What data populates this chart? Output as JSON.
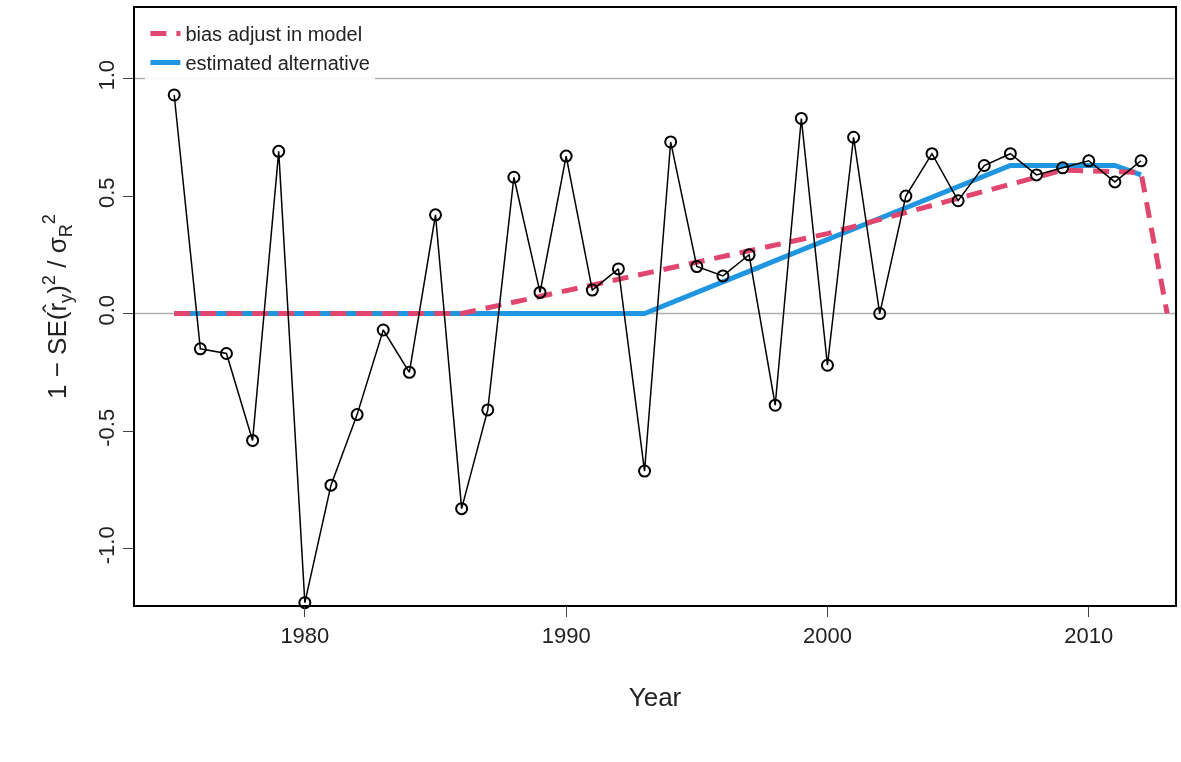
{
  "chart_data": {
    "type": "line",
    "xlabel": "Year",
    "ylabel": "1 − SE(r̂$_{y}$)$^{2}$ / σ$_{R}$$^{2}$",
    "x": [
      1975,
      1976,
      1977,
      1978,
      1979,
      1980,
      1981,
      1982,
      1983,
      1984,
      1985,
      1986,
      1987,
      1988,
      1989,
      1990,
      1991,
      1992,
      1993,
      1994,
      1995,
      1996,
      1997,
      1998,
      1999,
      2000,
      2001,
      2002,
      2003,
      2004,
      2005,
      2006,
      2007,
      2008,
      2009,
      2010,
      2011,
      2012
    ],
    "series": [
      {
        "color": "#000000",
        "marker": "circle",
        "values": [
          0.93,
          -0.15,
          -0.17,
          -0.54,
          0.69,
          -1.23,
          -0.73,
          -0.43,
          -0.07,
          -0.25,
          0.42,
          -0.83,
          -0.41,
          0.58,
          0.09,
          0.67,
          0.1,
          0.19,
          -0.67,
          0.73,
          0.2,
          0.16,
          0.25,
          -0.39,
          0.83,
          -0.22,
          0.75,
          0.0,
          0.5,
          0.68,
          0.48,
          0.63,
          0.68,
          0.59,
          0.62,
          0.65,
          0.56,
          0.65
        ]
      },
      {
        "name": "bias adjust in model",
        "color": "#e0466e",
        "line_style": "dashed",
        "marker": "none",
        "x": [
          1975,
          1986,
          2000,
          2007,
          2009,
          2012,
          2013
        ],
        "values": [
          0,
          0,
          0.34,
          0.55,
          0.61,
          0.6,
          0
        ]
      },
      {
        "name": "estimated alternative",
        "color": "#2196e0",
        "line_style": "solid",
        "marker": "none",
        "x": [
          1975,
          1993,
          2007,
          2011,
          2012
        ],
        "values": [
          0,
          0,
          0.63,
          0.63,
          0.59
        ]
      }
    ],
    "xlim": [
      1973.5,
      2013.3
    ],
    "ylim": [
      -1.24,
      1.3
    ],
    "xticks": [
      1980,
      1990,
      2000,
      2010
    ],
    "yticks": [
      {
        "value": -1.0,
        "label": "-1.0"
      },
      {
        "value": -0.5,
        "label": "-0.5"
      },
      {
        "value": 0.0,
        "label": "0.0"
      },
      {
        "value": 0.5,
        "label": "0.5"
      },
      {
        "value": 1.0,
        "label": "1.0"
      }
    ],
    "ref_lines": [
      {
        "axis": "y",
        "value": 0,
        "label": null,
        "color": "#b0b0b0"
      },
      {
        "axis": "y",
        "value": 1,
        "label": null,
        "color": "#b0b0b0"
      }
    ],
    "grid": false,
    "legend": "top left"
  }
}
